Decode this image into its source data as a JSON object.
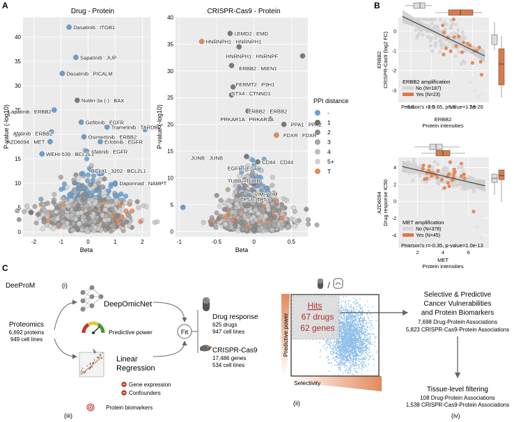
{
  "panel_labels": {
    "a": "A",
    "b": "B",
    "c": "C"
  },
  "colors": {
    "blue": "#6a9fd0",
    "orange": "#e28a5c",
    "grey_dark": "#7a7a7a",
    "grey_light": "#d4d4d4",
    "gauge_red": "#c0392b",
    "gauge_green": "#3a9e3a",
    "hist_blue": "#8fc0ea"
  },
  "panel_a": {
    "left": {
      "title": "Drug - Protein",
      "xlabel": "Beta",
      "ylabel": "P-value (-log10)",
      "x_ticks": [
        "-2",
        "-1",
        "0",
        "1",
        "2"
      ],
      "y_ticks": [
        "0",
        "5",
        "10",
        "15",
        "20",
        "25",
        "30",
        "35",
        "40"
      ],
      "labels": [
        "Dasatinib : ITGB1",
        "Sapatinib : JUP",
        "Dasatinib : PICALM",
        "Nutlin-3a (-) : BAX",
        "Lapatinib : ERBB2",
        "Gefitinib : EGFR",
        "Trametinib : TARDBP",
        "Afatinib : ERBB2",
        "Osimertinib : ERBB2",
        "Erlotinib : EGFR",
        "AZD6094 : MET",
        "Afatinib : EGFR",
        "WEHI-539 : BCL2L1",
        "BCLXL_3202 : BCL2L1",
        "Daporinad : NAMPT"
      ]
    },
    "right": {
      "title": "CRISPR-Cas9 - Protein",
      "xlabel": "Beta",
      "ylabel": "P-value (-log10)",
      "x_ticks": [
        "-1",
        "-0.5",
        "0",
        "0.5"
      ],
      "y_ticks": [
        "0",
        "5",
        "10",
        "15",
        "20",
        "25",
        "30",
        "35",
        "40"
      ],
      "labels": [
        "LEMD2 : EMD",
        "HNRNPH1 : HNRNPH1",
        "HNRNPH1 : HNRNPF",
        "ERBB2 : MIEN1",
        "FERMT2 : P3H1",
        "STX4 : CTNND1",
        "ERBB2 : ERBB2",
        "PRKAR1A : PRKAR1A",
        "PPA1 : PPA2",
        "FDXR : FDXR",
        "JUNB : JUNB",
        "CD44 : CD44",
        "EGFR : EGFR",
        "TUBB : TUBB",
        "VIM : VIM",
        "TP53 : TP53"
      ]
    },
    "legend": {
      "title": "PPI distance",
      "items": [
        "-",
        "1",
        "2",
        "3",
        "4",
        "5+",
        "T"
      ]
    }
  },
  "panel_b": {
    "top": {
      "ylabel1": "ERBB2",
      "ylabel2": "CRISPR-Cas9 (log2 FC)",
      "xlabel1": "ERBB2",
      "xlabel2": "Protein intensities",
      "x_ticks": [
        "0.0",
        "2.5",
        "5.0",
        "7.5"
      ],
      "y_ticks": [
        "0",
        "-1",
        "-2",
        "-3"
      ],
      "legend_title": "ERBB2 amplification",
      "legend_no": "No (N=187)",
      "legend_yes": "Yes (N=23)",
      "stats": "Pearson's r=-0.65, p-value=1.3e-26"
    },
    "bottom": {
      "ylabel1": "AZD6094",
      "ylabel2": "Drug response IC50",
      "xlabel1": "MET",
      "xlabel2": "Protein intensities",
      "x_ticks": [
        "2",
        "4",
        "6"
      ],
      "y_ticks": [
        "4",
        "2",
        "0",
        "-2",
        "-4"
      ],
      "legend_title": "MET amplification",
      "legend_no": "No (N=378)",
      "legend_yes": "Yes (N=45)",
      "stats": "Pearson's r=-0.35, p-value=1.0e-13"
    }
  },
  "panel_c": {
    "deeprom": "DeeProM",
    "roman_i": "(i)",
    "roman_ii": "(ii)",
    "roman_iii": "(iii)",
    "roman_iv": "(iv)",
    "proteomics_title": "Proteomics",
    "proteomics_line1": "6,692 proteins",
    "proteomics_line2": "949 cell lines",
    "deepomicnet": "DeepOmicNet",
    "predictive_power_label": "Predictive power",
    "linear_line1": "Linear",
    "linear_line2": "Regression",
    "gene_expression": "Gene expression",
    "confounders": "Confounders",
    "protein_biomarkers": "Protein biomarkers",
    "fit": "Fit",
    "drug_title": "Drug response",
    "drug_line1": "625 drugs",
    "drug_line2": "947 cell lines",
    "crispr_title": "CRISPR-Cas9",
    "crispr_line1": "17,486 genes",
    "crispr_line2": "534 cell lines",
    "hits_title": "Hits",
    "hits_line1": "67 drugs",
    "hits_line2": "62 genes",
    "axis_y": "Predictive power",
    "axis_x": "Selectivity",
    "result_title1": "Selective & Predictive",
    "result_title2": "Cancer Vulnerabilities",
    "result_title3": "and Protein Biomarkers",
    "result_line1": "7,698 Drug-Protein Associations",
    "result_line2": "5,823 CRISPR-Cas9-Protein Associations",
    "tissue_title": "Tissue-level filtering",
    "tissue_line1": "108 Drug-Protein Associations",
    "tissue_line2": "1,538 CRISPR-Cas9-Protein Associations"
  }
}
